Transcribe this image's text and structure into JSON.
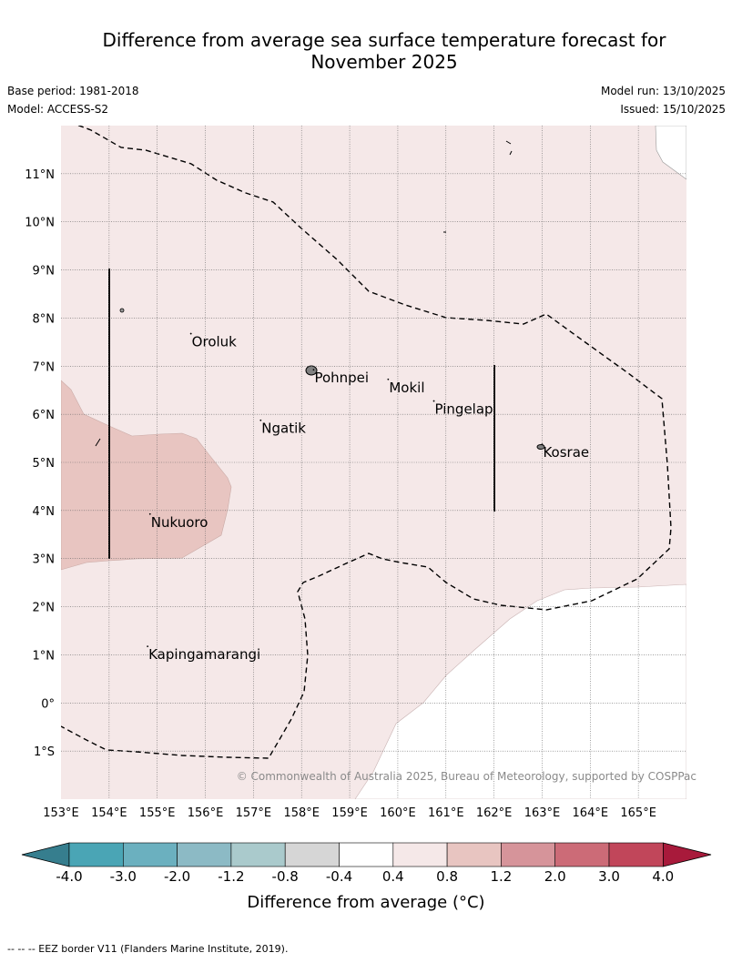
{
  "title": {
    "line1": "Difference from average sea surface temperature forecast for",
    "line2": "November 2025"
  },
  "meta": {
    "base_period": "Base period: 1981-2018",
    "model": "Model: ACCESS-S2",
    "model_run": "Model run: 13/10/2025",
    "issued": "Issued: 15/10/2025"
  },
  "map": {
    "lon_range": [
      153,
      166
    ],
    "lat_range": [
      -2,
      12
    ],
    "lon_ticks": [
      "153°E",
      "154°E",
      "155°E",
      "156°E",
      "157°E",
      "158°E",
      "159°E",
      "160°E",
      "161°E",
      "162°E",
      "163°E",
      "164°E",
      "165°E"
    ],
    "lat_ticks": [
      "11°N",
      "10°N",
      "9°N",
      "8°N",
      "7°N",
      "6°N",
      "5°N",
      "4°N",
      "3°N",
      "2°N",
      "1°N",
      "0°",
      "1°S"
    ],
    "places": [
      {
        "name": "Oroluk",
        "lon": 155.7,
        "lat": 7.6
      },
      {
        "name": "Pohnpei",
        "lon": 158.25,
        "lat": 6.85
      },
      {
        "name": "Mokil",
        "lon": 159.8,
        "lat": 6.65
      },
      {
        "name": "Pingelap",
        "lon": 160.75,
        "lat": 6.2
      },
      {
        "name": "Ngatik",
        "lon": 157.15,
        "lat": 5.8
      },
      {
        "name": "Kosrae",
        "lon": 163.0,
        "lat": 5.3
      },
      {
        "name": "Nukuoro",
        "lon": 154.85,
        "lat": 3.85
      },
      {
        "name": "Kapingamarangi",
        "lon": 154.8,
        "lat": 1.1
      }
    ],
    "copyright": "© Commonwealth of Australia 2025, Bureau of Meteorology, supported by COSPPac"
  },
  "colorbar": {
    "label": "Difference from average (°C)",
    "tick_labels": [
      "-4.0",
      "-3.0",
      "-2.0",
      "-1.2",
      "-0.8",
      "-0.4",
      "0.4",
      "0.8",
      "1.2",
      "2.0",
      "3.0",
      "4.0"
    ],
    "colors": [
      "#4aa5b5",
      "#6bb0bf",
      "#8cbac5",
      "#aacacc",
      "#d6d6d6",
      "#ffffff",
      "#f5e8e8",
      "#e8c5c1",
      "#d6949a",
      "#cc6b77",
      "#c1465a"
    ],
    "under_color": "#367e8e",
    "over_color": "#a81a3b"
  },
  "footnote": "--  --  -- EEZ border V11 (Flanders Marine Institute, 2019)."
}
